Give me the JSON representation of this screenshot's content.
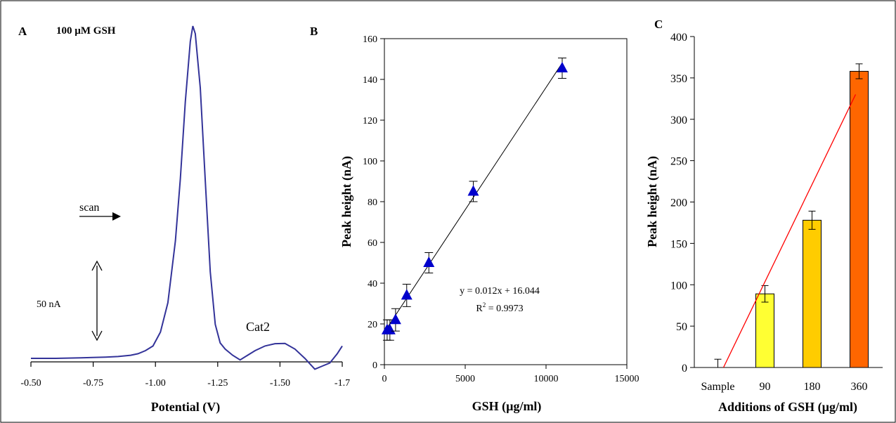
{
  "figure": {
    "border_color": "#000000"
  },
  "chart_data": [
    {
      "panel": "A",
      "type": "line",
      "title": "100 µM GSH",
      "xlabel": "Potential (V)",
      "ylabel": "",
      "x_ticks": [
        "-0.50",
        "-0.75",
        "-1.00",
        "-1.25",
        "-1.50",
        "-1.7"
      ],
      "xlim": [
        -0.5,
        -1.75
      ],
      "line_color": "#333399",
      "annotations": {
        "scan": "scan",
        "scale_bar": "50 nA",
        "peak2": "Cat2"
      },
      "scale_bar_nA": 50,
      "series": [
        {
          "x": [
            -0.5,
            -0.6,
            -0.7,
            -0.8,
            -0.85,
            -0.9,
            -0.93,
            -0.96,
            -0.99,
            -1.02,
            -1.05,
            -1.08,
            -1.1,
            -1.12,
            -1.14,
            -1.15,
            -1.16,
            -1.18,
            -1.2,
            -1.22,
            -1.24,
            -1.26,
            -1.28,
            -1.31,
            -1.34,
            -1.37,
            -1.4,
            -1.44,
            -1.48,
            -1.52,
            -1.56,
            -1.6,
            -1.64,
            -1.67,
            -1.7,
            -1.73,
            -1.75
          ],
          "y": [
            0,
            0,
            0.3,
            0.8,
            1.2,
            2,
            3,
            5,
            8,
            17,
            36,
            76,
            116,
            166,
            205,
            215,
            210,
            175,
            115,
            56,
            22,
            10,
            6,
            2,
            -1,
            2,
            5,
            8,
            9.5,
            9.7,
            6,
            0,
            -7,
            -5,
            -3,
            3,
            8
          ]
        }
      ]
    },
    {
      "panel": "B",
      "type": "scatter",
      "xlabel": "GSH (µg/ml)",
      "ylabel": "Peak height (nA)",
      "xlim": [
        0,
        15000
      ],
      "ylim": [
        0,
        160
      ],
      "x_ticks": [
        "0",
        "5000",
        "10000",
        "15000"
      ],
      "y_ticks": [
        "0",
        "20",
        "40",
        "60",
        "80",
        "100",
        "120",
        "140",
        "160"
      ],
      "marker_color": "#0000cc",
      "equation": "y = 0.012x + 16.044",
      "r2_label": "R",
      "r2_value": " = 0.9973",
      "trendline": {
        "slope": 0.012,
        "intercept": 16.044
      },
      "series": [
        {
          "x": [
            170,
            340,
            690,
            1380,
            2750,
            5500,
            11000
          ],
          "y": [
            17,
            17,
            22,
            34,
            50,
            85,
            145.5
          ],
          "err": [
            5,
            5,
            5.5,
            5.5,
            5,
            5,
            5
          ]
        }
      ]
    },
    {
      "panel": "C",
      "type": "bar",
      "xlabel": "Additions of GSH (µg/ml)",
      "ylabel": "Peak height (nA)",
      "ylim": [
        0,
        400
      ],
      "y_ticks": [
        "0",
        "50",
        "100",
        "150",
        "200",
        "250",
        "300",
        "350",
        "400"
      ],
      "categories": [
        "Sample",
        "90",
        "180",
        "360"
      ],
      "values": [
        0,
        89,
        178,
        358
      ],
      "errors": [
        10,
        10,
        11,
        9
      ],
      "colors": [
        "#ffffff",
        "#ffff33",
        "#ffcc00",
        "#ff6600"
      ],
      "trendline_color": "#ff0000"
    }
  ]
}
